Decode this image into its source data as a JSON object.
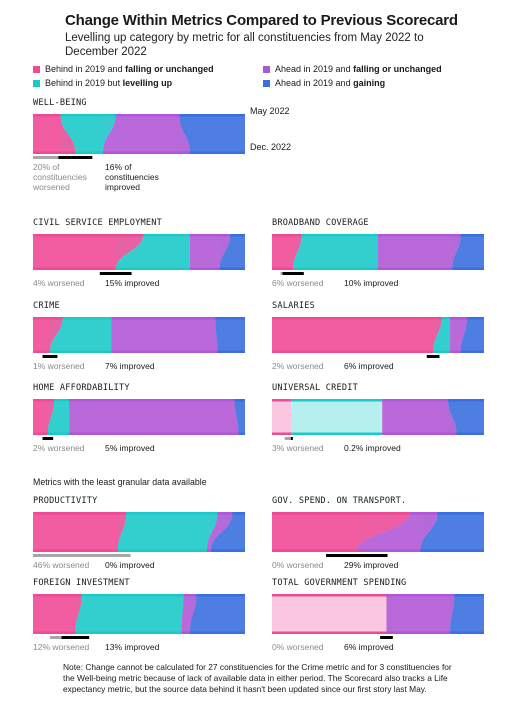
{
  "header": {
    "title": "Change Within Metrics Compared to Previous Scorecard",
    "subtitle": "Levelling up category by metric for all constituencies from May 2022 to December 2022"
  },
  "legend": [
    {
      "pre": "Behind in 2019 and ",
      "bold": "falling or unchanged",
      "color": "#ee4a95"
    },
    {
      "pre": "Ahead in 2019 and ",
      "bold": "falling or unchanged",
      "color": "#b157d6"
    },
    {
      "pre": "Behind in 2019 but ",
      "bold": "levelling up",
      "color": "#1cc9c9"
    },
    {
      "pre": "Ahead in 2019 and ",
      "bold": "gaining",
      "color": "#3a6fe0"
    }
  ],
  "colors": {
    "behind_falling": "#ee4a95",
    "behind_levelling": "#1cc9c9",
    "ahead_falling": "#b157d6",
    "ahead_gaining": "#3a6fe0",
    "light_pink": "#fbc6df",
    "light_teal": "#b6f0ee",
    "light_purple": "#e6cff0",
    "light_blue": "#c5d5f2",
    "worsened_grey": "#a6a6a6",
    "improved_black": "#000000"
  },
  "wellbeing_tags": {
    "top": "May 2022",
    "bottom": "Dec. 2022",
    "worsened": "20% of constituencies worsened",
    "improved": "16% of constituencies improved"
  },
  "section_label": "Metrics with the least granular data available",
  "note": "Note: Change cannot be calculated for 27 constituencies for the Crime metric and for 3 constituencies for the Well-being metric because of lack of available data in either period. The Scorecard also tracks a Life expectancy metric, but the source data behind it hasn't been updated since our first story last May.",
  "chart_data": [
    {
      "type": "area",
      "title": "WELL-BEING",
      "worsened": "20%",
      "improved": "16%",
      "worsened_label": "20% of constituencies worsened",
      "improved_label": "16% of constituencies improved",
      "may_2022": [
        13,
        26,
        30,
        31
      ],
      "dec_2022": [
        20,
        13,
        41,
        26
      ]
    },
    {
      "type": "area",
      "title": "CIVIL SERVICE EMPLOYMENT",
      "worsened": "4%",
      "improved": "15%",
      "worsened_label": "4% worsened",
      "improved_label": "15% improved",
      "may_2022": [
        52,
        22,
        19,
        7
      ],
      "dec_2022": [
        39,
        35,
        14,
        12
      ]
    },
    {
      "type": "area",
      "title": "BROADBAND COVERAGE",
      "worsened": "6%",
      "improved": "10%",
      "worsened_label": "6% worsened",
      "improved_label": "10% improved",
      "may_2022": [
        14,
        36,
        39,
        11
      ],
      "dec_2022": [
        10,
        40,
        35,
        15
      ]
    },
    {
      "type": "area",
      "title": "CRIME",
      "worsened": "1%",
      "improved": "7%",
      "worsened_label": "1% worsened",
      "improved_label": "7% improved",
      "may_2022": [
        14,
        23,
        49,
        14
      ],
      "dec_2022": [
        8,
        29,
        50,
        13
      ]
    },
    {
      "type": "area",
      "title": "SALARIES",
      "worsened": "2%",
      "improved": "6%",
      "worsened_label": "2% worsened",
      "improved_label": "6% improved",
      "may_2022": [
        80,
        4,
        8,
        8
      ],
      "dec_2022": [
        76,
        8,
        5,
        11
      ]
    },
    {
      "type": "area",
      "title": "HOME AFFORDABILITY",
      "worsened": "2%",
      "improved": "5%",
      "worsened_label": "2% worsened",
      "improved_label": "5% improved",
      "may_2022": [
        10,
        7,
        78,
        5
      ],
      "dec_2022": [
        7,
        10,
        80,
        3
      ]
    },
    {
      "type": "area",
      "title": "UNIVERSAL CREDIT",
      "worsened": "3%",
      "improved": "0.2%",
      "worsened_label": "3% worsened",
      "improved_label": "0.2% improved",
      "may_2022": [
        9,
        43,
        31,
        17
      ],
      "dec_2022": [
        9,
        43,
        35,
        13
      ]
    },
    {
      "type": "area",
      "title": "PRODUCTIVITY",
      "worsened": "46%",
      "improved": "0%",
      "worsened_label": "46% worsened",
      "improved_label": "0% improved",
      "may_2022": [
        44,
        43,
        7,
        6
      ],
      "dec_2022": [
        40,
        42,
        2,
        16
      ]
    },
    {
      "type": "area",
      "title": "GOV. SPEND. ON TRANSPORT.",
      "worsened": "0%",
      "improved": "29%",
      "worsened_label": "0% worsened",
      "improved_label": "29% improved",
      "may_2022": [
        65,
        0,
        13,
        22
      ],
      "dec_2022": [
        40,
        0,
        30,
        30
      ]
    },
    {
      "type": "area",
      "title": "FOREIGN INVESTMENT",
      "worsened": "12%",
      "improved": "13%",
      "worsened_label": "12% worsened",
      "improved_label": "13% improved",
      "may_2022": [
        23,
        48,
        6,
        23
      ],
      "dec_2022": [
        20,
        50,
        4,
        26
      ]
    },
    {
      "type": "area",
      "title": "TOTAL GOVERNMENT SPENDING",
      "worsened": "0%",
      "improved": "6%",
      "worsened_label": "0% worsened",
      "improved_label": "6% improved",
      "may_2022": [
        54,
        0,
        32,
        14
      ],
      "dec_2022": [
        54,
        0,
        30,
        16
      ]
    }
  ]
}
